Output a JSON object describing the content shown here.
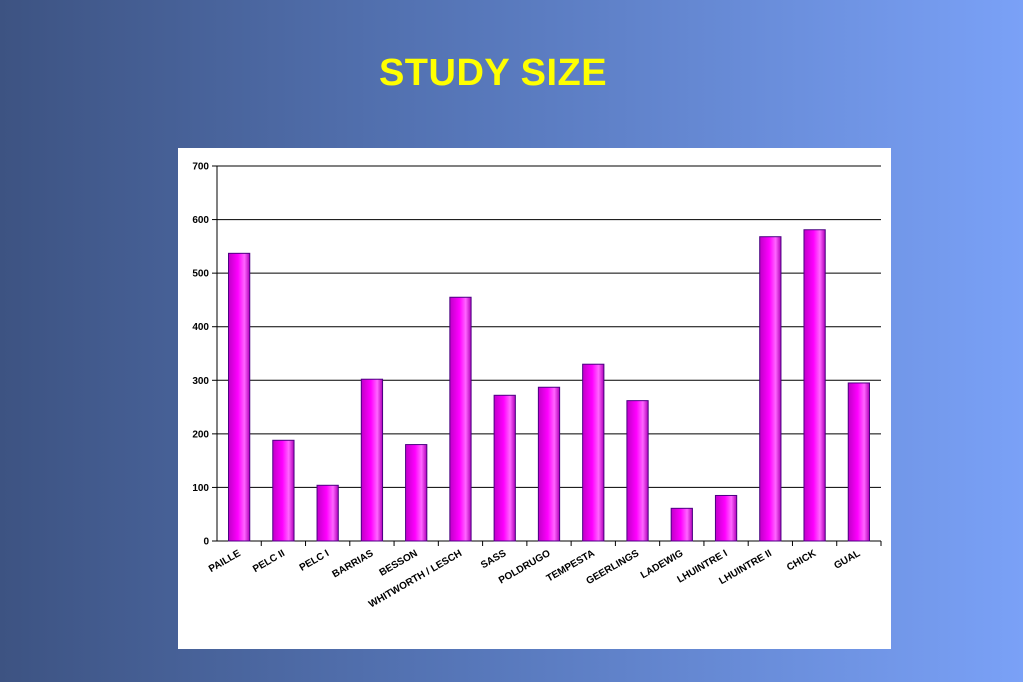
{
  "slide": {
    "title": "STUDY SIZE"
  },
  "colors": {
    "background_left": "#3d5382",
    "background_right": "#7aa1f7",
    "title": "#ffff00",
    "bar_fill": "#ff00ff",
    "bar_outline": "#4b0082",
    "gridline": "#000000"
  },
  "chart_data": {
    "type": "bar",
    "title": "",
    "xlabel": "",
    "ylabel": "",
    "categories": [
      "PAILLE",
      "PELC II",
      "PELC I",
      "BARRIAS",
      "BESSON",
      "WHITWORTH / LESCH",
      "SASS",
      "POLDRUGO",
      "TEMPESTA",
      "GEERLINGS",
      "LADEWIG",
      "LHUINTRE I",
      "LHUINTRE II",
      "CHICK",
      "GUAL"
    ],
    "values": [
      537,
      188,
      104,
      302,
      180,
      455,
      272,
      287,
      330,
      262,
      61,
      85,
      568,
      581,
      295
    ],
    "ylim": [
      0,
      700
    ],
    "yticks": [
      0,
      100,
      200,
      300,
      400,
      500,
      600,
      700
    ],
    "grid": true,
    "legend": "none"
  }
}
